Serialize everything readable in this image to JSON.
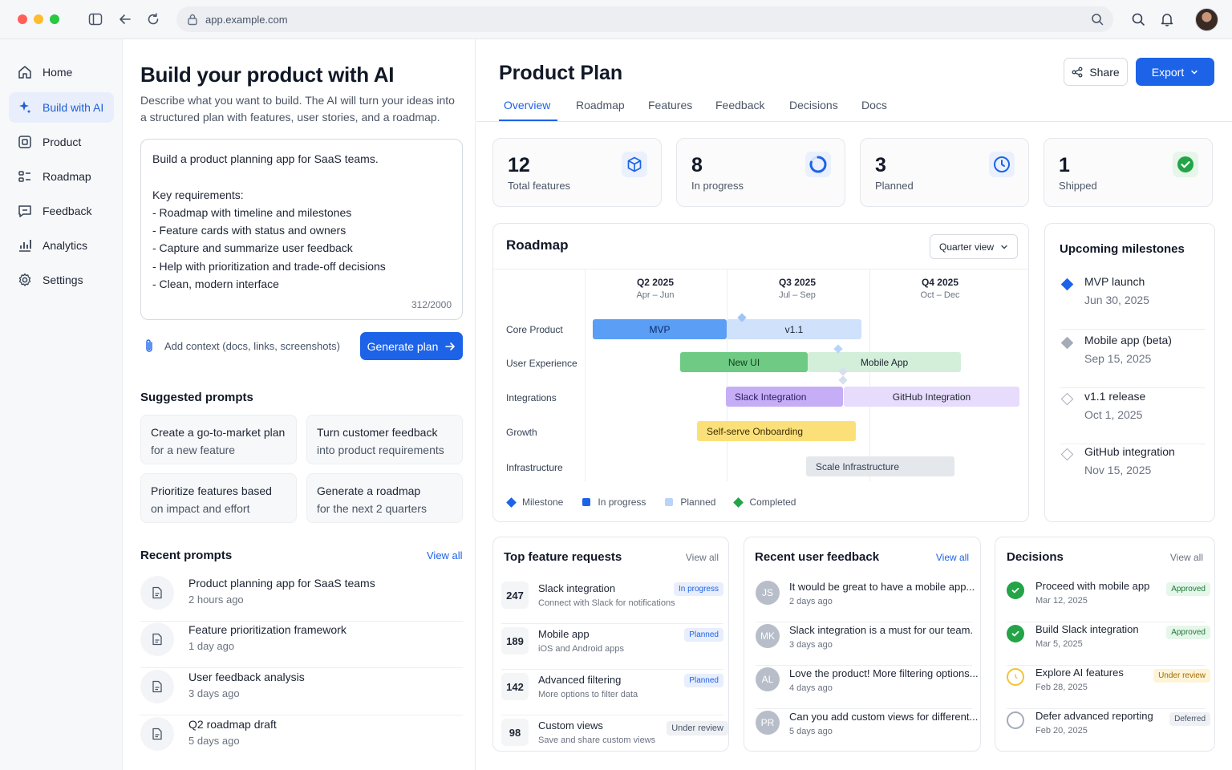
{
  "browser": {
    "url": "app.example.com"
  },
  "sidebar": {
    "items": [
      {
        "label": "Home",
        "icon": "home-icon"
      },
      {
        "label": "Build with AI",
        "icon": "sparkle-icon"
      },
      {
        "label": "Product",
        "icon": "product-icon"
      },
      {
        "label": "Roadmap",
        "icon": "roadmap-icon"
      },
      {
        "label": "Feedback",
        "icon": "feedback-icon"
      },
      {
        "label": "Analytics",
        "icon": "analytics-icon"
      },
      {
        "label": "Settings",
        "icon": "gear-icon"
      }
    ],
    "active": "Build with AI"
  },
  "build": {
    "title": "Build your product with AI",
    "subtitle": "Describe what you want to build. The AI will turn your ideas into a structured plan with features, user stories, and a roadmap.",
    "prompt_value": "Build a product planning app for SaaS teams.\n\nKey requirements:\n- Roadmap with timeline and milestones\n- Feature cards with status and owners\n- Capture and summarize user feedback\n- Help with prioritization and trade-off decisions\n- Clean, modern interface",
    "char_count": "312/2000",
    "context_label": "Add context (docs, links, screenshots)",
    "generate_label": "Generate plan",
    "suggested_title": "Suggested prompts",
    "suggested": [
      {
        "line1": "Create a go-to-market plan",
        "line2": "for a new feature"
      },
      {
        "line1": "Turn customer feedback",
        "line2": "into product requirements"
      },
      {
        "line1": "Prioritize features based",
        "line2": "on impact and effort"
      },
      {
        "line1": "Generate a roadmap",
        "line2": "for the next 2 quarters"
      }
    ],
    "recent_title": "Recent prompts",
    "recent_view_all": "View all",
    "recent": [
      {
        "title": "Product planning app for SaaS teams",
        "time": "2 hours ago"
      },
      {
        "title": "Feature prioritization framework",
        "time": "1 day ago"
      },
      {
        "title": "User feedback analysis",
        "time": "3 days ago"
      },
      {
        "title": "Q2 roadmap draft",
        "time": "5 days ago"
      }
    ]
  },
  "main": {
    "title": "Product Plan",
    "share_label": "Share",
    "export_label": "Export",
    "tabs": [
      "Overview",
      "Roadmap",
      "Features",
      "Feedback",
      "Decisions",
      "Docs"
    ],
    "active_tab": "Overview",
    "stats": [
      {
        "value": "12",
        "label": "Total features",
        "icon": "cube-icon"
      },
      {
        "value": "8",
        "label": "In progress",
        "icon": "progress-ring-icon"
      },
      {
        "value": "3",
        "label": "Planned",
        "icon": "clock-icon"
      },
      {
        "value": "1",
        "label": "Shipped",
        "icon": "check-circle-icon"
      }
    ],
    "roadmap": {
      "title": "Roadmap",
      "view_select": "Quarter view",
      "quarters": [
        {
          "name": "Q2 2025",
          "range": "Apr – Jun"
        },
        {
          "name": "Q3 2025",
          "range": "Jul – Sep"
        },
        {
          "name": "Q4 2025",
          "range": "Oct – Dec"
        }
      ],
      "rows": [
        "Core Product",
        "User Experience",
        "Integrations",
        "Growth",
        "Infrastructure"
      ],
      "bars": [
        {
          "label": "MVP",
          "row": 0
        },
        {
          "label": "v1.1",
          "row": 0
        },
        {
          "label": "New UI",
          "row": 1
        },
        {
          "label": "Mobile App",
          "row": 1
        },
        {
          "label": "Slack Integration",
          "row": 2
        },
        {
          "label": "GitHub Integration",
          "row": 2
        },
        {
          "label": "Self-serve Onboarding",
          "row": 3
        },
        {
          "label": "Scale Infrastructure",
          "row": 4
        }
      ],
      "legend": [
        "Milestone",
        "In progress",
        "Planned",
        "Completed"
      ]
    },
    "milestones": {
      "title": "Upcoming milestones",
      "items": [
        {
          "name": "MVP launch",
          "date": "Jun 30, 2025"
        },
        {
          "name": "Mobile app (beta)",
          "date": "Sep 15, 2025"
        },
        {
          "name": "v1.1 release",
          "date": "Oct 1, 2025"
        },
        {
          "name": "GitHub integration",
          "date": "Nov 15, 2025"
        }
      ]
    },
    "features": {
      "title": "Top feature requests",
      "view_all": "View all",
      "items": [
        {
          "count": "247",
          "name": "Slack integration",
          "desc": "Connect with Slack for notifications",
          "status": "In progress"
        },
        {
          "count": "189",
          "name": "Mobile app",
          "desc": "iOS and Android apps",
          "status": "Planned"
        },
        {
          "count": "142",
          "name": "Advanced filtering",
          "desc": "More options to filter data",
          "status": "Planned"
        },
        {
          "count": "98",
          "name": "Custom views",
          "desc": "Save and share custom views",
          "status": "Under review"
        }
      ]
    },
    "feedback": {
      "title": "Recent user feedback",
      "view_all": "View all",
      "items": [
        {
          "initials": "JS",
          "text": "It would be great to have a mobile app...",
          "time": "2 days ago"
        },
        {
          "initials": "MK",
          "text": "Slack integration is a must for our team.",
          "time": "3 days ago"
        },
        {
          "initials": "AL",
          "text": "Love the product! More filtering options...",
          "time": "4 days ago"
        },
        {
          "initials": "PR",
          "text": "Can you add custom views for different...",
          "time": "5 days ago"
        }
      ]
    },
    "decisions": {
      "title": "Decisions",
      "view_all": "View all",
      "items": [
        {
          "name": "Proceed with mobile app",
          "date": "Mar 12, 2025",
          "status": "Approved"
        },
        {
          "name": "Build Slack integration",
          "date": "Mar 5, 2025",
          "status": "Approved"
        },
        {
          "name": "Explore AI features",
          "date": "Feb 28, 2025",
          "status": "Under review"
        },
        {
          "name": "Defer advanced reporting",
          "date": "Feb 20, 2025",
          "status": "Deferred"
        }
      ]
    }
  },
  "colors": {
    "accent": "#1d63e8",
    "in_progress_bar": "#5b9ef5",
    "planned_bar": "#cfe1fb",
    "completed_bar": "#6fcb84",
    "purple_bar": "#c6aef6",
    "yellow_bar": "#fbe07a",
    "gray_bar": "#e4e7ec"
  }
}
